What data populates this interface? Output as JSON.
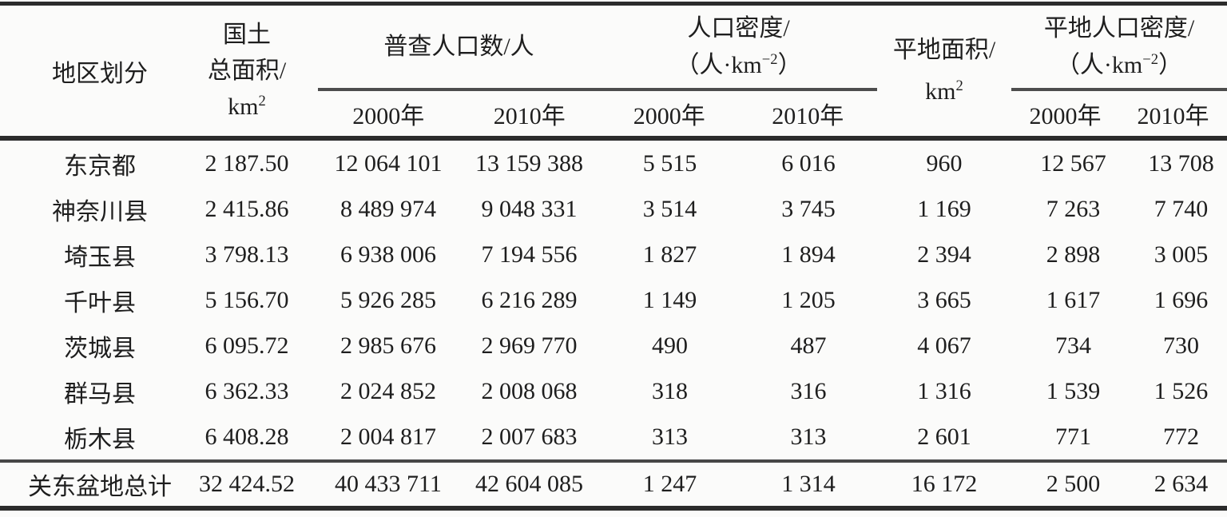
{
  "table": {
    "header": {
      "region": "地区划分",
      "land_area": {
        "line1": "国土",
        "line2": "总面积/",
        "unit_base": "km",
        "unit_sup": "2"
      },
      "census_population": {
        "label": "普查人口数/人",
        "years": [
          "2000年",
          "2010年"
        ]
      },
      "population_density": {
        "label": "人口密度/",
        "unit_pre": "（人·km",
        "unit_sup": "−2",
        "unit_post": "）",
        "years": [
          "2000年",
          "2010年"
        ]
      },
      "flat_area": {
        "line1": "平地面积/",
        "unit_base": "km",
        "unit_sup": "2"
      },
      "flat_density": {
        "label": "平地人口密度/",
        "unit_pre": "（人·km",
        "unit_sup": "−2",
        "unit_post": "）",
        "years": [
          "2000年",
          "2010年"
        ]
      }
    },
    "rows": [
      [
        "东京都",
        "2 187.50",
        "12 064 101",
        "13 159 388",
        "5 515",
        "6 016",
        "960",
        "12 567",
        "13 708"
      ],
      [
        "神奈川县",
        "2 415.86",
        "8 489 974",
        "9 048 331",
        "3 514",
        "3 745",
        "1 169",
        "7 263",
        "7 740"
      ],
      [
        "埼玉县",
        "3 798.13",
        "6 938 006",
        "7 194 556",
        "1 827",
        "1 894",
        "2 394",
        "2 898",
        "3 005"
      ],
      [
        "千叶县",
        "5 156.70",
        "5 926 285",
        "6 216 289",
        "1 149",
        "1 205",
        "3 665",
        "1 617",
        "1 696"
      ],
      [
        "茨城县",
        "6 095.72",
        "2 985 676",
        "2 969 770",
        "490",
        "487",
        "4 067",
        "734",
        "730"
      ],
      [
        "群马县",
        "6 362.33",
        "2 024 852",
        "2 008 068",
        "318",
        "316",
        "1 316",
        "1 539",
        "1 526"
      ],
      [
        "栃木县",
        "6 408.28",
        "2 004 817",
        "2 007 683",
        "313",
        "313",
        "2 601",
        "771",
        "772"
      ]
    ],
    "total_row": [
      "关东盆地总计",
      "32 424.52",
      "40 433 711",
      "42 604 085",
      "1 247",
      "1 314",
      "16 172",
      "2 500",
      "2 634"
    ]
  },
  "colors": {
    "background": "#fbfbfa",
    "text": "#1e1e1e",
    "rule_heavy": "#2c2c2c",
    "rule_light": "#4d4d4d"
  }
}
